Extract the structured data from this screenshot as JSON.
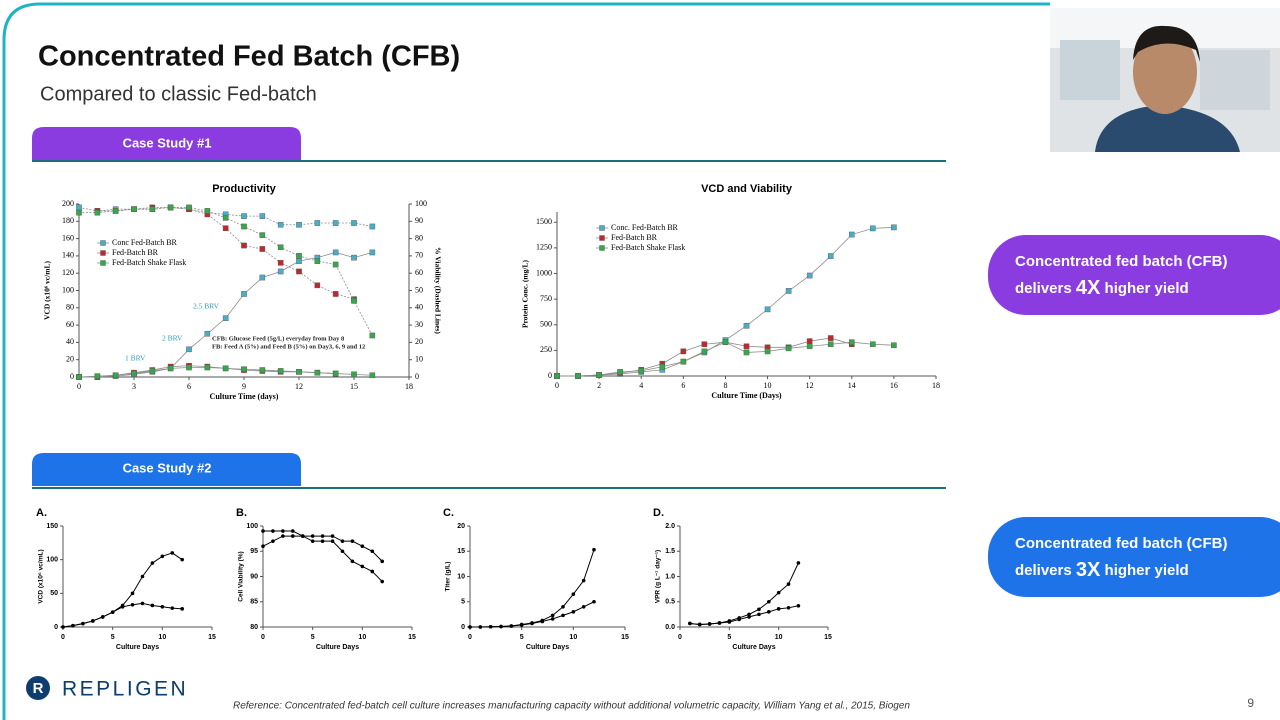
{
  "slide": {
    "title": "Concentrated Fed Batch (CFB)",
    "subtitle": "Compared to classic Fed-batch",
    "case_study_1": "Case Study #1",
    "case_study_2": "Case Study #2",
    "callouts": [
      {
        "line1": "Concentrated fed batch (CFB)",
        "pre": "delivers",
        "emph": "4X",
        "post": "higher yield"
      },
      {
        "line1": "Concentrated fed batch (CFB)",
        "pre": "delivers",
        "emph": "3X",
        "post": "higher yield"
      }
    ],
    "logo": "REPLIGEN",
    "reference": "Reference: Concentrated fed-batch cell culture increases manufacturing capacity without additional volumetric capacity, William Yang et al., 2015, Biogen",
    "page_number": "9"
  },
  "chart_data": [
    {
      "type": "line",
      "title": "Productivity",
      "x_label": "Culture Time (days)",
      "y_label": "VCD (x10⁶ vc/mL)",
      "y2_label": "% Viability (Dashed Lines)",
      "x": [
        0,
        1,
        2,
        3,
        4,
        5,
        6,
        7,
        8,
        9,
        10,
        11,
        12,
        13,
        14,
        15,
        16
      ],
      "xlim": [
        0,
        18
      ],
      "xticks": [
        0,
        3,
        6,
        9,
        12,
        15,
        18
      ],
      "ylim": [
        0,
        200
      ],
      "yticks": [
        0,
        20,
        40,
        60,
        80,
        100,
        120,
        140,
        160,
        180,
        200
      ],
      "y2lim": [
        0,
        100
      ],
      "y2ticks": [
        0,
        10,
        20,
        30,
        40,
        50,
        60,
        70,
        80,
        90,
        100
      ],
      "marker": "square",
      "line_color": "#8c8c8c",
      "series": [
        {
          "name": "Conc Fed-Batch BR",
          "color": "#4bacc6",
          "values": [
            0,
            0,
            1,
            3,
            6,
            10,
            32,
            50,
            68,
            96,
            115,
            122,
            134,
            138,
            144,
            138,
            144
          ],
          "viability": [
            98,
            96,
            97,
            97,
            97,
            98,
            97,
            95,
            94,
            93,
            93,
            88,
            88,
            89,
            89,
            89,
            87
          ]
        },
        {
          "name": "Fed-Batch BR",
          "color": "#c0282d",
          "values": [
            0,
            0,
            2,
            5,
            8,
            12,
            13,
            12,
            10,
            8,
            7,
            6,
            6,
            5,
            4,
            null,
            null
          ],
          "viability": [
            null,
            96,
            96,
            97,
            98,
            98,
            97,
            94,
            86,
            76,
            74,
            66,
            61,
            53,
            48,
            45,
            null
          ]
        },
        {
          "name": "Fed-Batch Shake Flask",
          "color": "#3aa64c",
          "values": [
            0,
            1,
            2,
            4,
            7,
            10,
            11,
            11,
            10,
            9,
            8,
            7,
            6,
            5,
            4,
            3,
            2
          ],
          "viability": [
            95,
            95,
            96,
            97,
            97,
            98,
            98,
            96,
            92,
            87,
            82,
            75,
            70,
            67,
            65,
            44,
            24
          ]
        }
      ],
      "annotations": [
        "2.5 BRV",
        "2 BRV",
        "1 BRV",
        "CFB: Glucose Feed (5g/L) everyday from Day 8",
        "FB: Feed A (5%) and Feed B (5%) on Day3, 6, 9 and 12"
      ]
    },
    {
      "type": "line",
      "title": "VCD and Viability",
      "x_label": "Culture Time (Days)",
      "y_label": "Protein Conc. (mg/L)",
      "x": [
        0,
        1,
        2,
        3,
        4,
        5,
        6,
        7,
        8,
        9,
        10,
        11,
        12,
        13,
        14,
        15,
        16
      ],
      "xlim": [
        0,
        18
      ],
      "xticks": [
        0,
        2,
        4,
        6,
        8,
        10,
        12,
        14,
        16,
        18
      ],
      "ylim": [
        0,
        1600
      ],
      "yticks": [
        0,
        250,
        500,
        750,
        1000,
        1250,
        1500
      ],
      "marker": "square",
      "line_color": "#8c8c8c",
      "series": [
        {
          "name": "Conc. Fed-Batch BR",
          "color": "#4bacc6",
          "values": [
            0,
            0,
            10,
            20,
            40,
            60,
            140,
            230,
            350,
            490,
            650,
            830,
            980,
            1170,
            1380,
            1440,
            1450
          ]
        },
        {
          "name": "Fed-Batch BR",
          "color": "#c0282d",
          "values": [
            0,
            0,
            10,
            30,
            60,
            120,
            240,
            310,
            330,
            290,
            280,
            280,
            340,
            370,
            310,
            null,
            null
          ]
        },
        {
          "name": "Fed-Batch Shake Flask",
          "color": "#3aa64c",
          "values": [
            0,
            0,
            10,
            40,
            50,
            90,
            140,
            240,
            330,
            230,
            240,
            270,
            290,
            310,
            330,
            310,
            300
          ]
        }
      ]
    },
    {
      "type": "line",
      "label": "A.",
      "x_label": "Culture Days",
      "y_label": "VCD (x10⁶ vc/mL)",
      "x": [
        0,
        1,
        2,
        3,
        4,
        5,
        6,
        7,
        8,
        9,
        10,
        11,
        12
      ],
      "xlim": [
        0,
        15
      ],
      "xticks": [
        0,
        5,
        10,
        15
      ],
      "ylim": [
        0,
        150
      ],
      "yticks": [
        0,
        50,
        100,
        150
      ],
      "marker": "circle",
      "line_color": "#000000",
      "series": [
        {
          "color": "#000000",
          "values": [
            0,
            2,
            5,
            9,
            15,
            22,
            32,
            50,
            75,
            95,
            105,
            110,
            100
          ]
        },
        {
          "color": "#000000",
          "values": [
            0,
            2,
            5,
            9,
            15,
            22,
            30,
            33,
            35,
            32,
            30,
            28,
            27
          ]
        }
      ]
    },
    {
      "type": "line",
      "label": "B.",
      "x_label": "Culture Days",
      "y_label": "Cell Viability (%)",
      "x": [
        0,
        1,
        2,
        3,
        4,
        5,
        6,
        7,
        8,
        9,
        10,
        11,
        12
      ],
      "xlim": [
        0,
        15
      ],
      "xticks": [
        0,
        5,
        10,
        15
      ],
      "ylim": [
        80,
        100
      ],
      "yticks": [
        80,
        85,
        90,
        95,
        100
      ],
      "marker": "circle",
      "line_color": "#000000",
      "series": [
        {
          "color": "#000000",
          "values": [
            99,
            99,
            99,
            99,
            98,
            98,
            98,
            98,
            97,
            97,
            96,
            95,
            93
          ]
        },
        {
          "color": "#000000",
          "values": [
            96,
            97,
            98,
            98,
            98,
            97,
            97,
            97,
            95,
            93,
            92,
            91,
            89
          ]
        }
      ]
    },
    {
      "type": "line",
      "label": "C.",
      "x_label": "Culture Days",
      "y_label": "Titer (g/L)",
      "x": [
        0,
        1,
        2,
        3,
        4,
        5,
        6,
        7,
        8,
        9,
        10,
        11,
        12
      ],
      "xlim": [
        0,
        15
      ],
      "xticks": [
        0,
        5,
        10,
        15
      ],
      "ylim": [
        0,
        20
      ],
      "yticks": [
        0,
        5,
        10,
        15,
        20
      ],
      "marker": "circle",
      "line_color": "#000000",
      "series": [
        {
          "color": "#000000",
          "values": [
            0,
            0,
            0.05,
            0.1,
            0.2,
            0.5,
            0.8,
            1.3,
            2.3,
            4,
            6.5,
            9.2,
            15.3
          ]
        },
        {
          "color": "#000000",
          "values": [
            0,
            0,
            0.05,
            0.1,
            0.2,
            0.4,
            0.7,
            1.1,
            1.6,
            2.3,
            3,
            4,
            5
          ]
        }
      ]
    },
    {
      "type": "line",
      "label": "D.",
      "x_label": "Culture Days",
      "y_label": "VPR (g L⁻¹ day⁻¹)",
      "x": [
        1,
        2,
        3,
        4,
        5,
        6,
        7,
        8,
        9,
        10,
        11,
        12
      ],
      "xlim": [
        0,
        15
      ],
      "xticks": [
        0,
        5,
        10,
        15
      ],
      "ylim": [
        0,
        2
      ],
      "yticks": [
        {
          "value": 0,
          "label": "0.0"
        },
        {
          "value": 0.5,
          "label": "0.5"
        },
        {
          "value": 1,
          "label": "1.0"
        },
        {
          "value": 1.5,
          "label": "1.5"
        },
        {
          "value": 2,
          "label": "2.0"
        }
      ],
      "marker": "circle",
      "line_color": "#000000",
      "series": [
        {
          "color": "#000000",
          "values": [
            0.07,
            0.05,
            0.06,
            0.08,
            0.12,
            0.18,
            0.25,
            0.35,
            0.5,
            0.68,
            0.85,
            1.27
          ]
        },
        {
          "color": "#000000",
          "values": [
            0.07,
            0.05,
            0.06,
            0.08,
            0.1,
            0.15,
            0.2,
            0.25,
            0.3,
            0.36,
            0.38,
            0.42
          ]
        }
      ]
    }
  ]
}
